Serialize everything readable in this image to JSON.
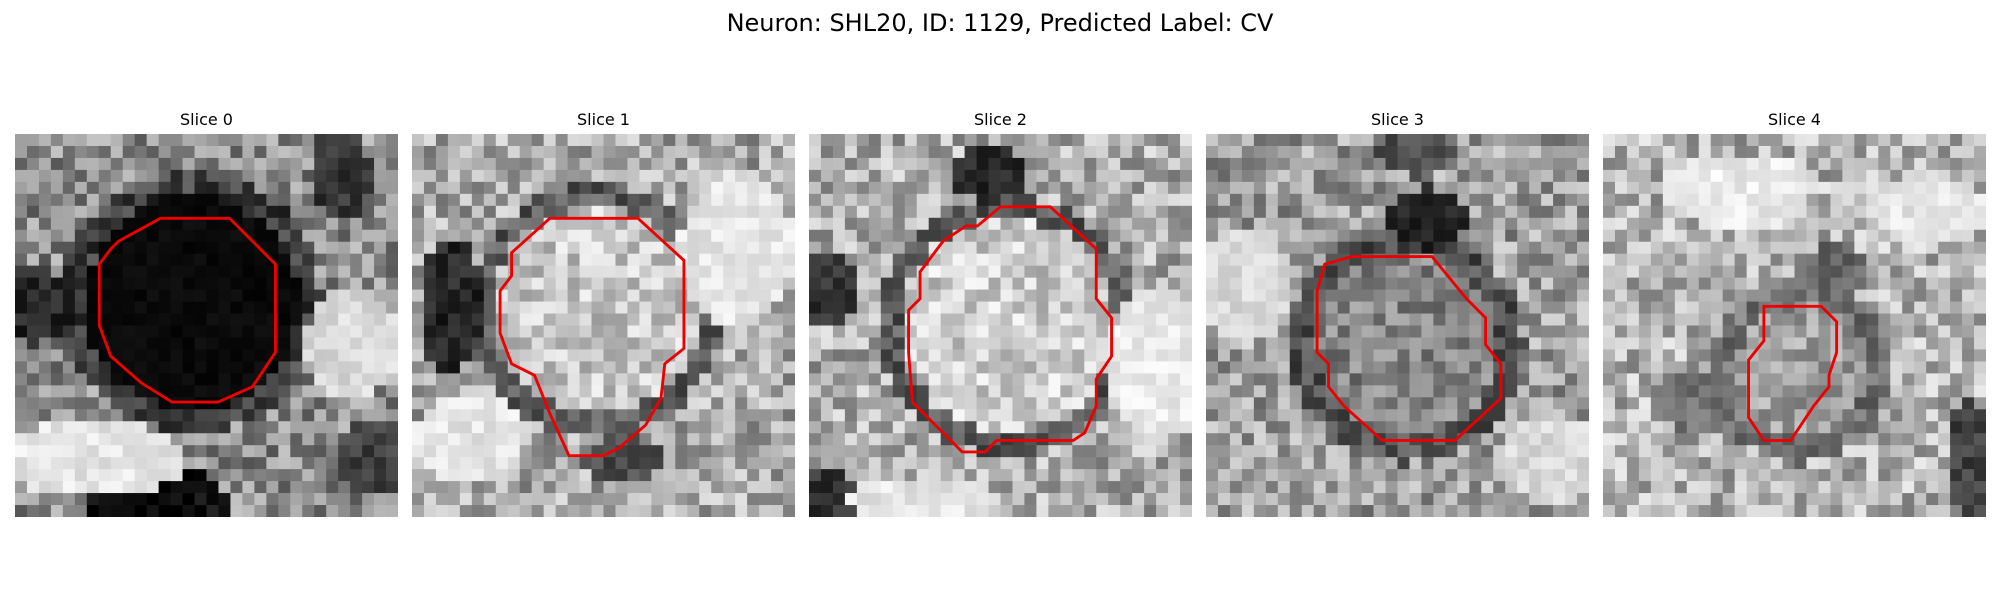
{
  "title": "Neuron: SHL20, ID: 1129, Predicted Label: CV",
  "contour_color": "#ee0000",
  "slices": [
    {
      "label": "Slice 0",
      "base": 0.55,
      "blob_center": [
        0.46,
        0.44
      ],
      "blob_r": 0.28,
      "blob_level": 0.04,
      "ring_level": 0.25,
      "ring_w": 0.06,
      "dark_patches": [
        [
          0.38,
          0.97,
          0.18,
          0.1,
          0.05
        ],
        [
          0.05,
          0.45,
          0.1,
          0.1,
          0.15
        ],
        [
          0.85,
          0.1,
          0.08,
          0.12,
          0.2
        ],
        [
          0.95,
          0.85,
          0.12,
          0.1,
          0.25
        ]
      ],
      "light_patches": [
        [
          0.2,
          0.85,
          0.25,
          0.1,
          0.9
        ],
        [
          0.88,
          0.55,
          0.12,
          0.15,
          0.85
        ]
      ],
      "contour": [
        [
          0.38,
          0.22
        ],
        [
          0.56,
          0.22
        ],
        [
          0.68,
          0.34
        ],
        [
          0.68,
          0.57
        ],
        [
          0.62,
          0.66
        ],
        [
          0.53,
          0.7
        ],
        [
          0.41,
          0.7
        ],
        [
          0.33,
          0.65
        ],
        [
          0.25,
          0.58
        ],
        [
          0.22,
          0.5
        ],
        [
          0.22,
          0.34
        ],
        [
          0.25,
          0.3
        ],
        [
          0.27,
          0.28
        ]
      ]
    },
    {
      "label": "Slice 1",
      "base": 0.66,
      "blob_center": [
        0.48,
        0.46
      ],
      "blob_r": 0.27,
      "blob_level": 0.78,
      "ring_level": 0.35,
      "ring_w": 0.06,
      "dark_patches": [
        [
          0.1,
          0.45,
          0.08,
          0.18,
          0.15
        ],
        [
          0.55,
          0.85,
          0.1,
          0.06,
          0.3
        ]
      ],
      "light_patches": [
        [
          0.85,
          0.3,
          0.15,
          0.2,
          0.9
        ],
        [
          0.15,
          0.8,
          0.15,
          0.12,
          0.9
        ]
      ],
      "contour": [
        [
          0.36,
          0.22
        ],
        [
          0.59,
          0.22
        ],
        [
          0.71,
          0.33
        ],
        [
          0.71,
          0.56
        ],
        [
          0.66,
          0.6
        ],
        [
          0.65,
          0.69
        ],
        [
          0.61,
          0.76
        ],
        [
          0.54,
          0.82
        ],
        [
          0.5,
          0.84
        ],
        [
          0.41,
          0.84
        ],
        [
          0.36,
          0.73
        ],
        [
          0.32,
          0.63
        ],
        [
          0.26,
          0.6
        ],
        [
          0.23,
          0.52
        ],
        [
          0.23,
          0.41
        ],
        [
          0.26,
          0.37
        ],
        [
          0.26,
          0.31
        ]
      ]
    },
    {
      "label": "Slice 2",
      "base": 0.68,
      "blob_center": [
        0.52,
        0.5
      ],
      "blob_r": 0.28,
      "blob_level": 0.8,
      "ring_level": 0.35,
      "ring_w": 0.06,
      "dark_patches": [
        [
          0.47,
          0.1,
          0.1,
          0.08,
          0.15
        ],
        [
          0.05,
          0.4,
          0.08,
          0.1,
          0.2
        ],
        [
          0.05,
          0.95,
          0.08,
          0.08,
          0.2
        ]
      ],
      "light_patches": [
        [
          0.9,
          0.6,
          0.12,
          0.2,
          0.92
        ],
        [
          0.3,
          0.95,
          0.2,
          0.06,
          0.9
        ]
      ],
      "contour": [
        [
          0.44,
          0.24
        ],
        [
          0.5,
          0.19
        ],
        [
          0.63,
          0.19
        ],
        [
          0.75,
          0.3
        ],
        [
          0.75,
          0.43
        ],
        [
          0.79,
          0.48
        ],
        [
          0.79,
          0.58
        ],
        [
          0.75,
          0.64
        ],
        [
          0.75,
          0.71
        ],
        [
          0.72,
          0.78
        ],
        [
          0.69,
          0.8
        ],
        [
          0.49,
          0.8
        ],
        [
          0.46,
          0.83
        ],
        [
          0.4,
          0.83
        ],
        [
          0.33,
          0.76
        ],
        [
          0.27,
          0.7
        ],
        [
          0.26,
          0.57
        ],
        [
          0.26,
          0.46
        ],
        [
          0.29,
          0.43
        ],
        [
          0.29,
          0.36
        ],
        [
          0.35,
          0.28
        ],
        [
          0.41,
          0.24
        ]
      ]
    },
    {
      "label": "Slice 3",
      "base": 0.62,
      "blob_center": [
        0.52,
        0.55
      ],
      "blob_r": 0.24,
      "blob_level": 0.52,
      "ring_level": 0.32,
      "ring_w": 0.07,
      "dark_patches": [
        [
          0.58,
          0.22,
          0.1,
          0.08,
          0.15
        ],
        [
          0.55,
          0.05,
          0.1,
          0.06,
          0.3
        ]
      ],
      "light_patches": [
        [
          0.1,
          0.4,
          0.12,
          0.15,
          0.85
        ],
        [
          0.9,
          0.85,
          0.12,
          0.12,
          0.85
        ]
      ],
      "contour": [
        [
          0.31,
          0.34
        ],
        [
          0.38,
          0.32
        ],
        [
          0.59,
          0.32
        ],
        [
          0.68,
          0.43
        ],
        [
          0.73,
          0.48
        ],
        [
          0.73,
          0.55
        ],
        [
          0.77,
          0.6
        ],
        [
          0.77,
          0.69
        ],
        [
          0.65,
          0.8
        ],
        [
          0.46,
          0.8
        ],
        [
          0.36,
          0.71
        ],
        [
          0.32,
          0.66
        ],
        [
          0.32,
          0.6
        ],
        [
          0.29,
          0.57
        ],
        [
          0.29,
          0.41
        ]
      ]
    },
    {
      "label": "Slice 4",
      "base": 0.7,
      "blob_center": [
        0.52,
        0.62
      ],
      "blob_r": 0.17,
      "blob_level": 0.62,
      "ring_level": 0.45,
      "ring_w": 0.07,
      "dark_patches": [
        [
          0.96,
          0.85,
          0.06,
          0.15,
          0.25
        ],
        [
          0.6,
          0.35,
          0.1,
          0.06,
          0.4
        ],
        [
          0.25,
          0.7,
          0.12,
          0.08,
          0.45
        ]
      ],
      "light_patches": [
        [
          0.35,
          0.15,
          0.2,
          0.1,
          0.92
        ],
        [
          0.85,
          0.2,
          0.15,
          0.1,
          0.9
        ]
      ],
      "contour": [
        [
          0.42,
          0.45
        ],
        [
          0.57,
          0.45
        ],
        [
          0.61,
          0.49
        ],
        [
          0.61,
          0.57
        ],
        [
          0.59,
          0.63
        ],
        [
          0.59,
          0.66
        ],
        [
          0.55,
          0.71
        ],
        [
          0.49,
          0.8
        ],
        [
          0.42,
          0.8
        ],
        [
          0.38,
          0.74
        ],
        [
          0.38,
          0.59
        ],
        [
          0.42,
          0.54
        ]
      ]
    }
  ]
}
